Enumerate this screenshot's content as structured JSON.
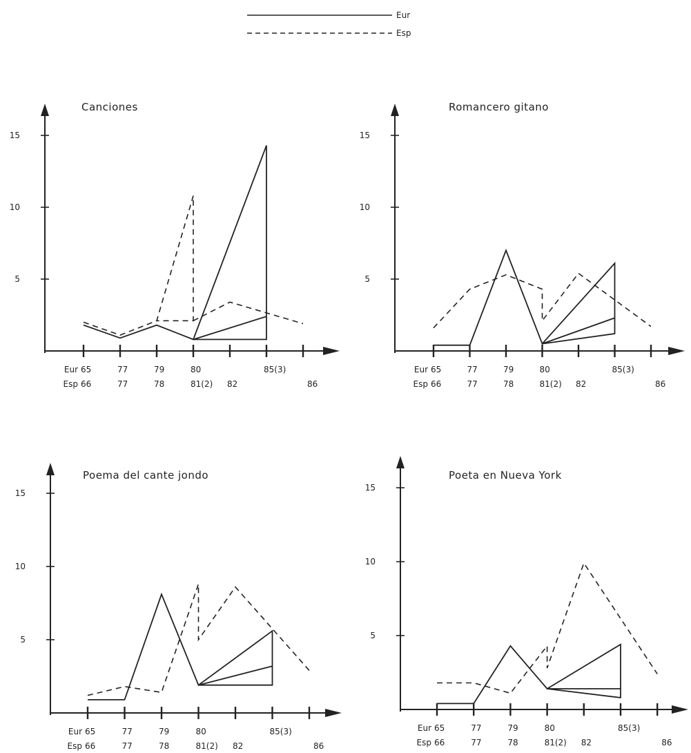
{
  "legend": [
    {
      "label": "Eur",
      "style": "solid"
    },
    {
      "label": "Esp",
      "style": "dashed"
    }
  ],
  "chart_data": [
    {
      "type": "line",
      "title": "Canciones",
      "ylim": [
        0,
        17
      ],
      "yticks": [
        "5",
        "10",
        "15"
      ],
      "row_labels": [
        "Eur",
        "Esp"
      ],
      "x_labels_eur": [
        "65",
        "77",
        "79",
        "80",
        "",
        "85(3)",
        ""
      ],
      "x_labels_esp": [
        "66",
        "77",
        "78",
        "81(2)",
        "82",
        "",
        "86"
      ],
      "series": [
        {
          "name": "Eur",
          "style": "solid",
          "segments": [
            [
              [
                0,
                1.8
              ],
              [
                1,
                0.9
              ],
              [
                2,
                1.8
              ],
              [
                3,
                0.8
              ],
              [
                5,
                14.3
              ],
              [
                5,
                0.8
              ],
              [
                3,
                0.8
              ],
              [
                5,
                2.4
              ],
              [
                3,
                0.8
              ]
            ]
          ]
        },
        {
          "name": "Esp",
          "style": "dashed",
          "segments": [
            [
              [
                0,
                2.0
              ],
              [
                1,
                1.1
              ],
              [
                2,
                2.1
              ],
              [
                3,
                10.8
              ],
              [
                3,
                2.1
              ],
              [
                2,
                2.1
              ]
            ],
            [
              [
                3,
                2.1
              ],
              [
                4,
                3.4
              ],
              [
                6,
                1.9
              ]
            ]
          ]
        }
      ]
    },
    {
      "type": "line",
      "title": "Romancero gitano",
      "ylim": [
        0,
        17
      ],
      "yticks": [
        "5",
        "10",
        "15"
      ],
      "row_labels": [
        "Eur",
        "Esp"
      ],
      "x_labels_eur": [
        "65",
        "77",
        "79",
        "80",
        "",
        "85(3)",
        ""
      ],
      "x_labels_esp": [
        "66",
        "77",
        "78",
        "81(2)",
        "82",
        "",
        "86"
      ],
      "series": [
        {
          "name": "Eur",
          "style": "solid",
          "segments": [
            [
              [
                0,
                0.4
              ],
              [
                1,
                0.4
              ],
              [
                2,
                7.0
              ],
              [
                3,
                0.5
              ],
              [
                5,
                6.1
              ],
              [
                5,
                1.2
              ],
              [
                3,
                0.5
              ],
              [
                5,
                2.3
              ],
              [
                3,
                0.5
              ]
            ]
          ]
        },
        {
          "name": "Esp",
          "style": "dashed",
          "segments": [
            [
              [
                0,
                1.6
              ],
              [
                1,
                4.3
              ],
              [
                2,
                5.3
              ],
              [
                3,
                4.3
              ],
              [
                3,
                2.1
              ],
              [
                4,
                5.4
              ],
              [
                6,
                1.7
              ]
            ]
          ]
        }
      ]
    },
    {
      "type": "line",
      "title": "Poema del cante jondo",
      "ylim": [
        0,
        17
      ],
      "yticks": [
        "5",
        "10",
        "15"
      ],
      "row_labels": [
        "Eur",
        "Esp"
      ],
      "x_labels_eur": [
        "65",
        "77",
        "79",
        "80",
        "",
        "85(3)",
        ""
      ],
      "x_labels_esp": [
        "66",
        "77",
        "78",
        "81(2)",
        "82",
        "",
        "86"
      ],
      "series": [
        {
          "name": "Eur",
          "style": "solid",
          "segments": [
            [
              [
                0,
                0.9
              ],
              [
                1,
                0.9
              ],
              [
                2,
                8.1
              ],
              [
                3,
                1.9
              ],
              [
                5,
                5.6
              ],
              [
                5,
                1.9
              ],
              [
                3,
                1.9
              ],
              [
                5,
                3.2
              ],
              [
                3,
                1.9
              ]
            ]
          ]
        },
        {
          "name": "Esp",
          "style": "dashed",
          "segments": [
            [
              [
                0,
                1.2
              ],
              [
                1,
                1.8
              ],
              [
                2,
                1.4
              ],
              [
                3,
                8.8
              ],
              [
                3,
                5.0
              ],
              [
                4,
                8.6
              ],
              [
                6,
                2.9
              ]
            ]
          ]
        }
      ]
    },
    {
      "type": "line",
      "title": "Poeta en Nueva York",
      "ylim": [
        0,
        17
      ],
      "yticks": [
        "5",
        "10",
        "15"
      ],
      "row_labels": [
        "Eur",
        "Esp"
      ],
      "x_labels_eur": [
        "65",
        "77",
        "79",
        "80",
        "",
        "85(3)",
        ""
      ],
      "x_labels_esp": [
        "66",
        "77",
        "78",
        "81(2)",
        "82",
        "",
        "86"
      ],
      "series": [
        {
          "name": "Eur",
          "style": "solid",
          "segments": [
            [
              [
                0,
                0.4
              ],
              [
                1,
                0.4
              ],
              [
                2,
                4.3
              ],
              [
                3,
                1.4
              ],
              [
                5,
                4.4
              ],
              [
                5,
                0.8
              ],
              [
                3,
                1.4
              ],
              [
                5,
                1.4
              ],
              [
                3,
                1.4
              ]
            ]
          ]
        },
        {
          "name": "Esp",
          "style": "dashed",
          "segments": [
            [
              [
                0,
                1.8
              ],
              [
                1,
                1.8
              ],
              [
                2,
                1.1
              ],
              [
                3,
                4.3
              ],
              [
                3,
                2.8
              ],
              [
                4,
                9.9
              ],
              [
                6,
                2.4
              ]
            ]
          ]
        }
      ]
    }
  ]
}
